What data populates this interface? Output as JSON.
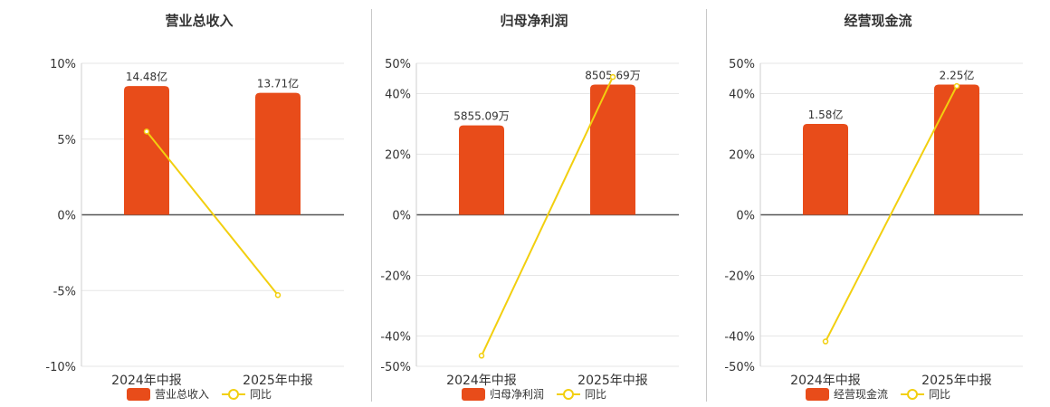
{
  "colors": {
    "bar": "#e84c1a",
    "line": "#f2cf0f",
    "axis": "#555555",
    "grid": "#e6e6e6",
    "text": "#333333"
  },
  "chart_data": [
    {
      "type": "bar",
      "title": "营业总收入",
      "categories": [
        "2024年中报",
        "2025年中报"
      ],
      "ylim": [
        -10,
        10
      ],
      "yticks": [
        10,
        5,
        0,
        -5,
        -10
      ],
      "ytick_labels": [
        "10%",
        "5%",
        "0%",
        "-5%",
        "-10%"
      ],
      "grid": true,
      "legend_position": "bottom",
      "series": [
        {
          "name": "营业总收入",
          "type": "bar",
          "values": [
            8.5,
            8.05
          ],
          "labels": [
            "14.48亿",
            "13.71亿"
          ]
        },
        {
          "name": "同比",
          "type": "line",
          "values": [
            5.5,
            -5.3
          ]
        }
      ]
    },
    {
      "type": "bar",
      "title": "归母净利润",
      "categories": [
        "2024年中报",
        "2025年中报"
      ],
      "ylim": [
        -50,
        50
      ],
      "yticks": [
        50,
        40,
        20,
        0,
        -20,
        -40,
        -50
      ],
      "ytick_labels": [
        "50%",
        "40%",
        "20%",
        "0%",
        "-20%",
        "-40%",
        "-50%"
      ],
      "grid": true,
      "legend_position": "bottom",
      "series": [
        {
          "name": "归母净利润",
          "type": "bar",
          "values": [
            29.5,
            43.0
          ],
          "labels": [
            "5855.09万",
            "8505.69万"
          ]
        },
        {
          "name": "同比",
          "type": "line",
          "values": [
            -46.5,
            45.5
          ]
        }
      ]
    },
    {
      "type": "bar",
      "title": "经营现金流",
      "categories": [
        "2024年中报",
        "2025年中报"
      ],
      "ylim": [
        -50,
        50
      ],
      "yticks": [
        50,
        40,
        20,
        0,
        -20,
        -40,
        -50
      ],
      "ytick_labels": [
        "50%",
        "40%",
        "20%",
        "0%",
        "-20%",
        "-40%",
        "-50%"
      ],
      "grid": true,
      "legend_position": "bottom",
      "series": [
        {
          "name": "经营现金流",
          "type": "bar",
          "values": [
            30.0,
            43.0
          ],
          "labels": [
            "1.58亿",
            "2.25亿"
          ]
        },
        {
          "name": "同比",
          "type": "line",
          "values": [
            -41.8,
            42.5
          ]
        }
      ]
    }
  ]
}
